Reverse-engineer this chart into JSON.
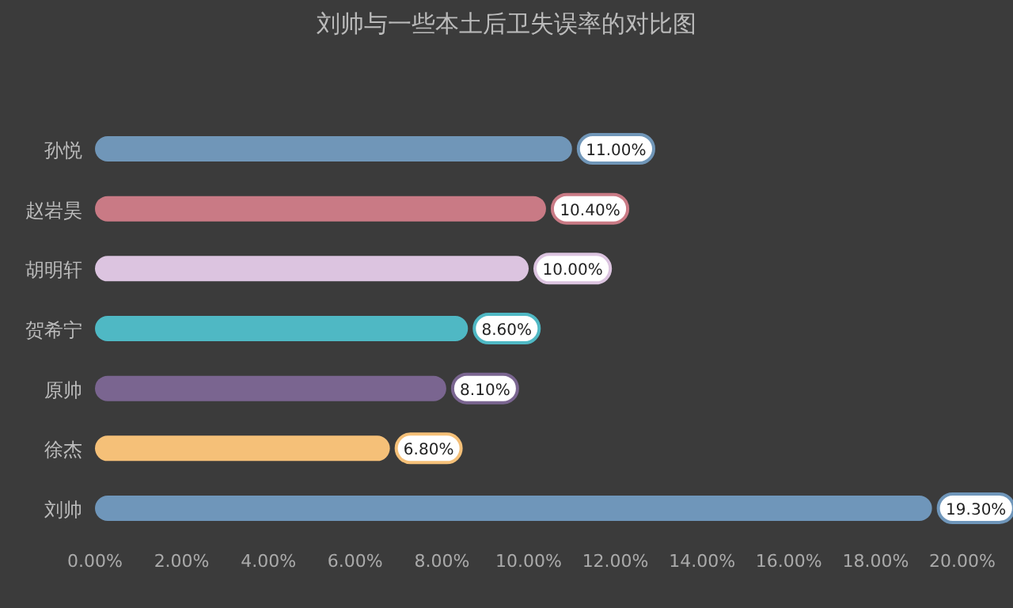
{
  "chart_data": {
    "type": "bar",
    "orientation": "horizontal",
    "title": "刘帅与一些本土后卫失误率的对比图",
    "categories": [
      "孙悦",
      "赵岩昊",
      "胡明轩",
      "贺希宁",
      "原帅",
      "徐杰",
      "刘帅"
    ],
    "values": [
      11,
      10.4,
      10,
      8.6,
      8.1,
      6.8,
      19.3
    ],
    "value_labels": [
      "11.00%",
      "10.40%",
      "10.00%",
      "8.60%",
      "8.10%",
      "6.80%",
      "19.30%"
    ],
    "colors": [
      "#7096b8",
      "#c97a85",
      "#dcc4e0",
      "#4fb8c4",
      "#7a6590",
      "#f5c078",
      "#6f96ba"
    ],
    "xlim": [
      0,
      20
    ],
    "xticks": [
      {
        "value": 0,
        "label": "0.00%"
      },
      {
        "value": 2,
        "label": "2.00%"
      },
      {
        "value": 4,
        "label": "4.00%"
      },
      {
        "value": 6,
        "label": "6.00%"
      },
      {
        "value": 8,
        "label": "8.00%"
      },
      {
        "value": 10,
        "label": "10.00%"
      },
      {
        "value": 12,
        "label": "12.00%"
      },
      {
        "value": 14,
        "label": "14.00%"
      },
      {
        "value": 16,
        "label": "16.00%"
      },
      {
        "value": 18,
        "label": "18.00%"
      },
      {
        "value": 20,
        "label": "20.00%"
      }
    ]
  }
}
